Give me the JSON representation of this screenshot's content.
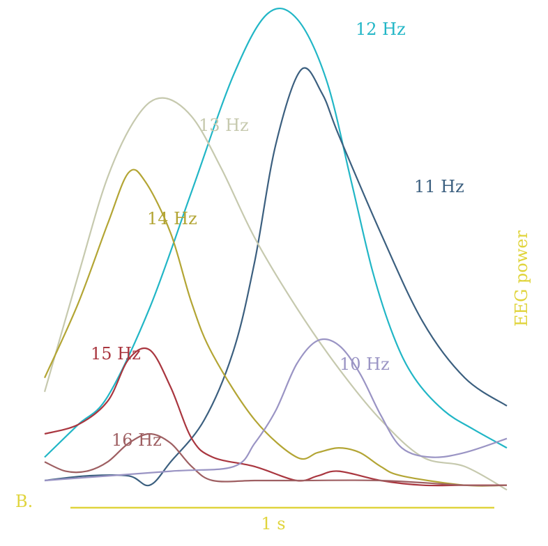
{
  "chart_data": {
    "type": "line",
    "panel_label": "B.",
    "ylabel": "EEG power",
    "scale_bar_label": "1 s",
    "scale_bar_duration_s": 1,
    "x_range_s": [
      0,
      1.1
    ],
    "y_range": [
      0,
      1
    ],
    "grid": false,
    "legend": "inline labels",
    "colors": {
      "axis_annotations": "#e0d43c",
      "10 Hz": "#9a94c4",
      "11 Hz": "#3b5f7f",
      "12 Hz": "#21b6c6",
      "13 Hz": "#c6c9ae",
      "14 Hz": "#b3a534",
      "15 Hz": "#a9363f",
      "16 Hz": "#9e5f62"
    },
    "series": [
      {
        "name": "12 Hz",
        "x": [
          0.0,
          0.08,
          0.15,
          0.25,
          0.35,
          0.45,
          0.53,
          0.6,
          0.67,
          0.73,
          0.78,
          0.83,
          0.88,
          0.95,
          1.02,
          1.1
        ],
        "values": [
          0.05,
          0.12,
          0.18,
          0.37,
          0.62,
          0.87,
          1.0,
          0.99,
          0.86,
          0.64,
          0.45,
          0.31,
          0.22,
          0.15,
          0.11,
          0.07
        ]
      },
      {
        "name": "11 Hz",
        "x": [
          0.0,
          0.1,
          0.2,
          0.25,
          0.3,
          0.38,
          0.45,
          0.5,
          0.55,
          0.61,
          0.66,
          0.7,
          0.8,
          0.9,
          1.0,
          1.1
        ],
        "values": [
          0.0,
          0.01,
          0.01,
          -0.01,
          0.04,
          0.13,
          0.28,
          0.47,
          0.72,
          0.88,
          0.83,
          0.74,
          0.53,
          0.34,
          0.22,
          0.16
        ]
      },
      {
        "name": "13 Hz",
        "x": [
          0.0,
          0.08,
          0.15,
          0.22,
          0.28,
          0.35,
          0.42,
          0.5,
          0.6,
          0.7,
          0.8,
          0.9,
          1.0,
          1.1
        ],
        "values": [
          0.19,
          0.44,
          0.65,
          0.78,
          0.82,
          0.78,
          0.67,
          0.52,
          0.37,
          0.24,
          0.13,
          0.05,
          0.03,
          -0.02
        ]
      },
      {
        "name": "14 Hz",
        "x": [
          0.0,
          0.08,
          0.15,
          0.2,
          0.24,
          0.3,
          0.35,
          0.4,
          0.5,
          0.6,
          0.65,
          0.7,
          0.75,
          0.8,
          0.85,
          1.0,
          1.1
        ],
        "values": [
          0.22,
          0.38,
          0.55,
          0.66,
          0.64,
          0.53,
          0.38,
          0.27,
          0.13,
          0.05,
          0.06,
          0.07,
          0.06,
          0.03,
          0.01,
          -0.01,
          -0.01
        ]
      },
      {
        "name": "15 Hz",
        "x": [
          0.0,
          0.08,
          0.15,
          0.2,
          0.25,
          0.3,
          0.35,
          0.4,
          0.5,
          0.6,
          0.65,
          0.7,
          0.8,
          0.9,
          1.0,
          1.1
        ],
        "values": [
          0.1,
          0.12,
          0.17,
          0.26,
          0.28,
          0.2,
          0.09,
          0.05,
          0.03,
          0.0,
          0.01,
          0.02,
          0.0,
          -0.01,
          -0.01,
          -0.01
        ]
      },
      {
        "name": "16 Hz",
        "x": [
          0.0,
          0.05,
          0.1,
          0.15,
          0.2,
          0.25,
          0.3,
          0.35,
          0.4,
          0.5,
          0.6,
          0.8,
          1.0,
          1.1
        ],
        "values": [
          0.04,
          0.02,
          0.02,
          0.04,
          0.08,
          0.1,
          0.08,
          0.03,
          0.0,
          0.0,
          0.0,
          0.0,
          -0.01,
          -0.01
        ]
      },
      {
        "name": "10 Hz",
        "x": [
          0.0,
          0.3,
          0.45,
          0.5,
          0.55,
          0.6,
          0.65,
          0.7,
          0.75,
          0.8,
          0.85,
          0.92,
          1.0,
          1.1
        ],
        "values": [
          0.0,
          0.02,
          0.03,
          0.08,
          0.15,
          0.25,
          0.3,
          0.29,
          0.23,
          0.14,
          0.07,
          0.05,
          0.06,
          0.09
        ]
      }
    ]
  }
}
